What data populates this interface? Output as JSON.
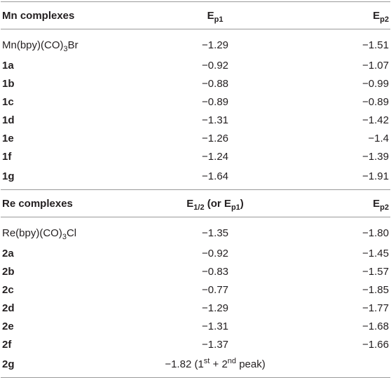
{
  "table": {
    "sections": [
      {
        "header": [
          [
            {
              "t": "Mn complexes"
            }
          ],
          [
            {
              "t": "E"
            },
            {
              "t": "p1",
              "s": "sub"
            }
          ],
          [
            {
              "t": "E"
            },
            {
              "t": "p2",
              "s": "sub"
            }
          ]
        ],
        "rows": [
          [
            [
              {
                "t": "Mn(bpy)(CO)"
              },
              {
                "t": "3",
                "s": "sub"
              },
              {
                "t": "Br"
              }
            ],
            [
              {
                "t": "−1.29"
              }
            ],
            [
              {
                "t": "−1.51"
              }
            ]
          ],
          [
            [
              {
                "t": "1a",
                "b": true
              }
            ],
            [
              {
                "t": "−0.92"
              }
            ],
            [
              {
                "t": "−1.07"
              }
            ]
          ],
          [
            [
              {
                "t": "1b",
                "b": true
              }
            ],
            [
              {
                "t": "−0.88"
              }
            ],
            [
              {
                "t": "−0.99"
              }
            ]
          ],
          [
            [
              {
                "t": "1c",
                "b": true
              }
            ],
            [
              {
                "t": "−0.89"
              }
            ],
            [
              {
                "t": "−0.89"
              }
            ]
          ],
          [
            [
              {
                "t": "1d",
                "b": true
              }
            ],
            [
              {
                "t": "−1.31"
              }
            ],
            [
              {
                "t": "−1.42"
              }
            ]
          ],
          [
            [
              {
                "t": "1e",
                "b": true
              }
            ],
            [
              {
                "t": "−1.26"
              }
            ],
            [
              {
                "t": "−1.4"
              }
            ]
          ],
          [
            [
              {
                "t": "1f",
                "b": true
              }
            ],
            [
              {
                "t": "−1.24"
              }
            ],
            [
              {
                "t": "−1.39"
              }
            ]
          ],
          [
            [
              {
                "t": "1g",
                "b": true
              }
            ],
            [
              {
                "t": "−1.64"
              }
            ],
            [
              {
                "t": "−1.91"
              }
            ]
          ]
        ]
      },
      {
        "header": [
          [
            {
              "t": "Re complexes"
            }
          ],
          [
            {
              "t": "E"
            },
            {
              "t": "1/2",
              "s": "sub"
            },
            {
              "t": " (or E"
            },
            {
              "t": "p1",
              "s": "sub"
            },
            {
              "t": ")"
            }
          ],
          [
            {
              "t": "E"
            },
            {
              "t": "p2",
              "s": "sub"
            }
          ]
        ],
        "rows": [
          [
            [
              {
                "t": "Re(bpy)(CO)"
              },
              {
                "t": "3",
                "s": "sub"
              },
              {
                "t": "Cl"
              }
            ],
            [
              {
                "t": "−1.35"
              }
            ],
            [
              {
                "t": "−1.80"
              }
            ]
          ],
          [
            [
              {
                "t": "2a",
                "b": true
              }
            ],
            [
              {
                "t": "−0.92"
              }
            ],
            [
              {
                "t": "−1.45"
              }
            ]
          ],
          [
            [
              {
                "t": "2b",
                "b": true
              }
            ],
            [
              {
                "t": "−0.83"
              }
            ],
            [
              {
                "t": "−1.57"
              }
            ]
          ],
          [
            [
              {
                "t": "2c",
                "b": true
              }
            ],
            [
              {
                "t": "−0.77"
              }
            ],
            [
              {
                "t": "−1.85"
              }
            ]
          ],
          [
            [
              {
                "t": "2d",
                "b": true
              }
            ],
            [
              {
                "t": "−1.29"
              }
            ],
            [
              {
                "t": "−1.77"
              }
            ]
          ],
          [
            [
              {
                "t": "2e",
                "b": true
              }
            ],
            [
              {
                "t": "−1.31"
              }
            ],
            [
              {
                "t": "−1.68"
              }
            ]
          ],
          [
            [
              {
                "t": "2f",
                "b": true
              }
            ],
            [
              {
                "t": "−1.37"
              }
            ],
            [
              {
                "t": "−1.66"
              }
            ]
          ],
          [
            [
              {
                "t": "2g",
                "b": true
              }
            ],
            [
              {
                "t": "−1.82 (1"
              },
              {
                "t": "st",
                "s": "sup"
              },
              {
                "t": " + 2"
              },
              {
                "t": "nd",
                "s": "sup"
              },
              {
                "t": " peak)"
              }
            ],
            []
          ]
        ]
      }
    ]
  }
}
